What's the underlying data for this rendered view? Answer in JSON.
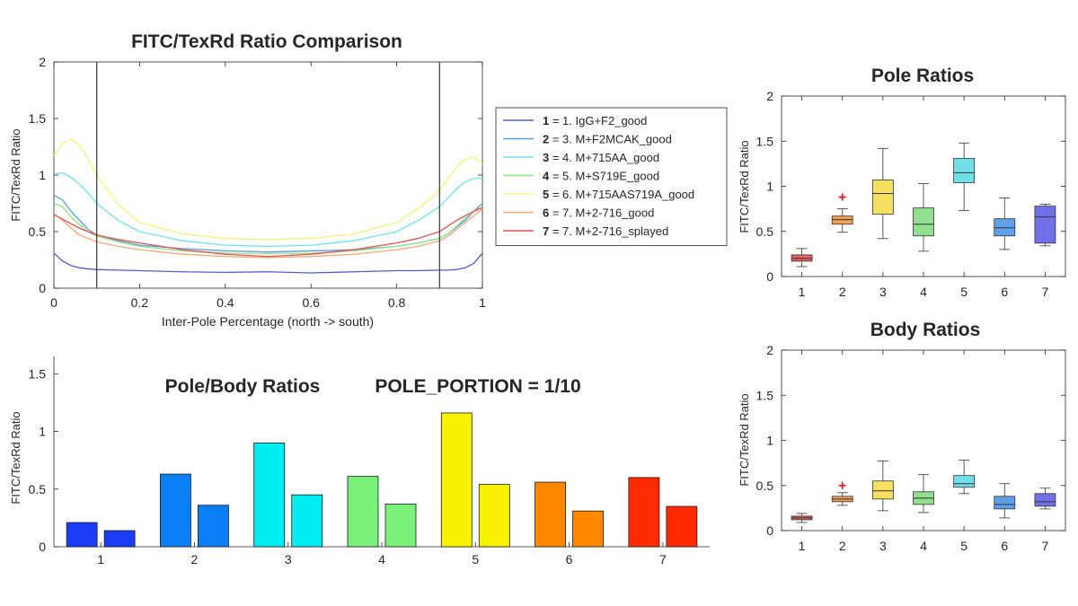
{
  "chart_data": [
    {
      "id": "line",
      "type": "line",
      "title": "FITC/TexRd Ratio Comparison",
      "xlabel": "Inter-Pole Percentage (north -> south)",
      "ylabel": "FITC/TexRd Ratio",
      "xlim": [
        0,
        1
      ],
      "ylim": [
        0,
        2
      ],
      "xticks": [
        0,
        0.2,
        0.4,
        0.6,
        0.8,
        1
      ],
      "xtick_labels": [
        "0",
        "0.2",
        "0.4",
        "0.6",
        "0.8",
        "1"
      ],
      "yticks": [
        0,
        0.5,
        1,
        1.5,
        2
      ],
      "ytick_labels": [
        "0",
        "0.5",
        "1",
        "1.5",
        "2"
      ],
      "vlines": [
        0.1,
        0.9
      ],
      "grid": false,
      "legend_position": "right",
      "x": [
        0,
        0.02,
        0.04,
        0.06,
        0.08,
        0.1,
        0.15,
        0.2,
        0.3,
        0.4,
        0.5,
        0.6,
        0.7,
        0.8,
        0.85,
        0.9,
        0.92,
        0.94,
        0.96,
        0.98,
        1
      ],
      "series": [
        {
          "key": "1",
          "name": "1. IgG+F2_good",
          "color": "#4f60d6",
          "values": [
            0.31,
            0.24,
            0.2,
            0.18,
            0.17,
            0.165,
            0.16,
            0.155,
            0.145,
            0.14,
            0.145,
            0.135,
            0.145,
            0.155,
            0.155,
            0.16,
            0.16,
            0.165,
            0.18,
            0.22,
            0.31
          ]
        },
        {
          "key": "2",
          "name": "3. M+F2MCAK_good",
          "color": "#5a9ee0",
          "values": [
            0.82,
            0.78,
            0.68,
            0.6,
            0.52,
            0.47,
            0.42,
            0.38,
            0.35,
            0.33,
            0.32,
            0.33,
            0.34,
            0.37,
            0.4,
            0.44,
            0.48,
            0.54,
            0.6,
            0.68,
            0.75
          ]
        },
        {
          "key": "3",
          "name": "4. M+715AA_good",
          "color": "#6ee3f2",
          "values": [
            1.01,
            1.02,
            0.98,
            0.92,
            0.84,
            0.75,
            0.6,
            0.5,
            0.42,
            0.38,
            0.37,
            0.38,
            0.42,
            0.5,
            0.6,
            0.72,
            0.8,
            0.88,
            0.94,
            0.97,
            0.97
          ]
        },
        {
          "key": "4",
          "name": "5. M+S719E_good",
          "color": "#92e68c",
          "values": [
            0.75,
            0.72,
            0.63,
            0.56,
            0.5,
            0.46,
            0.41,
            0.37,
            0.33,
            0.31,
            0.305,
            0.31,
            0.33,
            0.37,
            0.4,
            0.44,
            0.48,
            0.55,
            0.62,
            0.68,
            0.72
          ]
        },
        {
          "key": "5",
          "name": "6. M+715AAS719A_good",
          "color": "#f6f27a",
          "values": [
            1.17,
            1.28,
            1.32,
            1.26,
            1.14,
            1.0,
            0.74,
            0.58,
            0.48,
            0.44,
            0.43,
            0.44,
            0.48,
            0.58,
            0.7,
            0.86,
            0.97,
            1.07,
            1.14,
            1.16,
            1.1
          ]
        },
        {
          "key": "6",
          "name": "7. M+2-716_good",
          "color": "#f3a878",
          "values": [
            0.66,
            0.6,
            0.53,
            0.47,
            0.44,
            0.41,
            0.37,
            0.34,
            0.3,
            0.28,
            0.27,
            0.28,
            0.3,
            0.34,
            0.37,
            0.42,
            0.46,
            0.52,
            0.58,
            0.64,
            0.7
          ]
        },
        {
          "key": "7",
          "name": "7. M+2-716_splayed",
          "color": "#e8504a",
          "values": [
            0.65,
            0.61,
            0.57,
            0.53,
            0.5,
            0.47,
            0.43,
            0.4,
            0.34,
            0.3,
            0.28,
            0.3,
            0.34,
            0.4,
            0.44,
            0.5,
            0.55,
            0.6,
            0.64,
            0.68,
            0.71
          ]
        }
      ]
    },
    {
      "id": "bar",
      "type": "bar",
      "title": "Pole/Body Ratios",
      "annotation": "POLE_PORTION = 1/10",
      "annotation_color": "#22ee22",
      "ylabel": "FITC/TexRd Ratio",
      "ylim": [
        0,
        1.65
      ],
      "yticks": [
        0,
        0.5,
        1,
        1.5
      ],
      "ytick_labels": [
        "0",
        "0.5",
        "1",
        "1.5"
      ],
      "categories": [
        "1",
        "2",
        "3",
        "4",
        "5",
        "6",
        "7"
      ],
      "series": [
        {
          "values": [
            0.21,
            0.63,
            0.9,
            0.61,
            1.16,
            0.56,
            0.6
          ],
          "colors": [
            "#1a3cf5",
            "#0a7ef5",
            "#00eef2",
            "#7af27a",
            "#f8f200",
            "#ff8800",
            "#ff2a00"
          ]
        },
        {
          "values": [
            0.14,
            0.36,
            0.45,
            0.37,
            0.54,
            0.31,
            0.35
          ],
          "colors": [
            "#1a3cf5",
            "#0a7ef5",
            "#00eef2",
            "#7af27a",
            "#f8f200",
            "#ff8800",
            "#ff2a00"
          ]
        }
      ]
    },
    {
      "id": "pole",
      "type": "box",
      "title": "Pole Ratios",
      "ylabel": "FITC/TexRd Ratio",
      "ylim": [
        0,
        2
      ],
      "yticks": [
        0,
        0.5,
        1,
        1.5,
        2
      ],
      "ytick_labels": [
        "0",
        "0.5",
        "1",
        "1.5",
        "2"
      ],
      "categories": [
        "1",
        "2",
        "3",
        "4",
        "5",
        "6",
        "7"
      ],
      "boxes": [
        {
          "color": "#e86060",
          "whisker_low": 0.11,
          "q1": 0.17,
          "median": 0.2,
          "q3": 0.24,
          "whisker_high": 0.31,
          "outliers": []
        },
        {
          "color": "#f0a050",
          "whisker_low": 0.49,
          "q1": 0.58,
          "median": 0.63,
          "q3": 0.67,
          "whisker_high": 0.75,
          "outliers": [
            0.88
          ]
        },
        {
          "color": "#f5e060",
          "whisker_low": 0.42,
          "q1": 0.69,
          "median": 0.92,
          "q3": 1.07,
          "whisker_high": 1.42,
          "outliers": []
        },
        {
          "color": "#90e090",
          "whisker_low": 0.28,
          "q1": 0.45,
          "median": 0.58,
          "q3": 0.76,
          "whisker_high": 1.03,
          "outliers": []
        },
        {
          "color": "#70e0e8",
          "whisker_low": 0.73,
          "q1": 1.04,
          "median": 1.15,
          "q3": 1.31,
          "whisker_high": 1.48,
          "outliers": []
        },
        {
          "color": "#60a0e8",
          "whisker_low": 0.3,
          "q1": 0.45,
          "median": 0.54,
          "q3": 0.64,
          "whisker_high": 0.87,
          "outliers": []
        },
        {
          "color": "#7070e8",
          "whisker_low": 0.34,
          "q1": 0.37,
          "median": 0.66,
          "q3": 0.78,
          "whisker_high": 0.8,
          "outliers": []
        }
      ]
    },
    {
      "id": "body",
      "type": "box",
      "title": "Body Ratios",
      "ylabel": "FITC/TexRd Ratio",
      "ylim": [
        0,
        2
      ],
      "yticks": [
        0,
        0.5,
        1,
        1.5,
        2
      ],
      "ytick_labels": [
        "0",
        "0.5",
        "1",
        "1.5",
        "2"
      ],
      "categories": [
        "1",
        "2",
        "3",
        "4",
        "5",
        "6",
        "7"
      ],
      "boxes": [
        {
          "color": "#e86060",
          "whisker_low": 0.09,
          "q1": 0.12,
          "median": 0.14,
          "q3": 0.16,
          "whisker_high": 0.19,
          "outliers": []
        },
        {
          "color": "#f0a050",
          "whisker_low": 0.28,
          "q1": 0.32,
          "median": 0.35,
          "q3": 0.38,
          "whisker_high": 0.42,
          "outliers": [
            0.5
          ]
        },
        {
          "color": "#f5e060",
          "whisker_low": 0.22,
          "q1": 0.35,
          "median": 0.44,
          "q3": 0.55,
          "whisker_high": 0.77,
          "outliers": []
        },
        {
          "color": "#90e090",
          "whisker_low": 0.2,
          "q1": 0.29,
          "median": 0.36,
          "q3": 0.43,
          "whisker_high": 0.62,
          "outliers": []
        },
        {
          "color": "#70e0e8",
          "whisker_low": 0.41,
          "q1": 0.48,
          "median": 0.52,
          "q3": 0.61,
          "whisker_high": 0.78,
          "outliers": []
        },
        {
          "color": "#60a0e8",
          "whisker_low": 0.14,
          "q1": 0.24,
          "median": 0.29,
          "q3": 0.38,
          "whisker_high": 0.52,
          "outliers": []
        },
        {
          "color": "#7070e8",
          "whisker_low": 0.24,
          "q1": 0.27,
          "median": 0.32,
          "q3": 0.41,
          "whisker_high": 0.47,
          "outliers": []
        }
      ]
    }
  ]
}
